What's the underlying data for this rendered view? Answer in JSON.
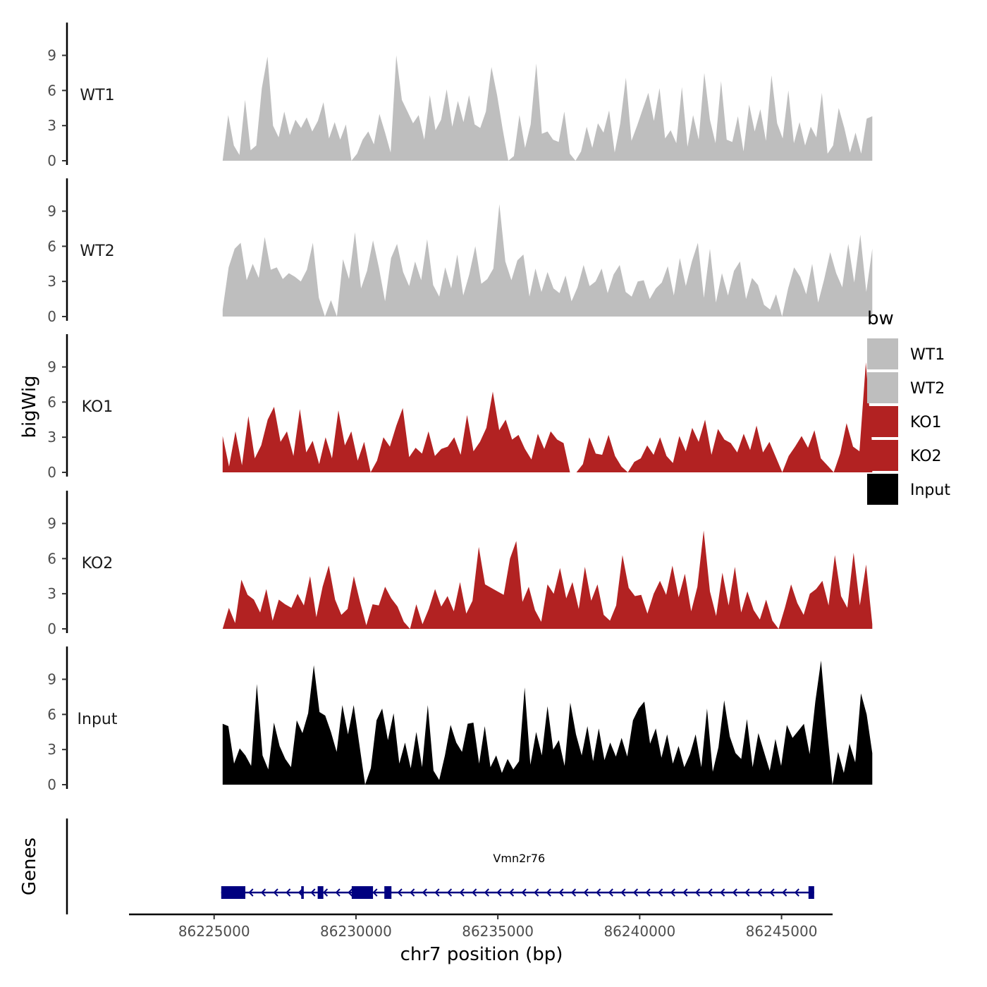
{
  "chart_data": {
    "type": "area",
    "title": "",
    "xlabel": "chr7 position (bp)",
    "ylabel": "bigWig",
    "genes_label": "Genes",
    "xlim": [
      86222000,
      86246800
    ],
    "x_start": 86225300,
    "x_end": 86248200,
    "x_ticks": [
      86225000,
      86230000,
      86235000,
      86240000,
      86245000
    ],
    "x_tick_labels": [
      "86225000",
      "86230000",
      "86235000",
      "86240000",
      "86245000"
    ],
    "ylim": [
      0,
      11.5
    ],
    "y_ticks": [
      0,
      3,
      6,
      9
    ],
    "y_tick_labels": [
      "0",
      "3",
      "6",
      "9"
    ],
    "legend": {
      "title": "bw",
      "entries": [
        {
          "label": "WT1",
          "color": "#bebebe"
        },
        {
          "label": "WT2",
          "color": "#bebebe"
        },
        {
          "label": "KO1",
          "color": "#b22222"
        },
        {
          "label": "KO2",
          "color": "#b22222"
        },
        {
          "label": "Input",
          "color": "#000000"
        }
      ]
    },
    "series": [
      {
        "name": "WT1",
        "label": "WT1",
        "color": "#bebebe",
        "values": [
          0,
          3.9,
          1.3,
          0.5,
          5.2,
          0.9,
          1.3,
          6.2,
          8.9,
          3.0,
          2.0,
          4.2,
          2.2,
          3.5,
          2.8,
          3.7,
          2.5,
          3.4,
          5.0,
          1.9,
          3.3,
          1.8,
          3.1,
          0,
          0.6,
          1.8,
          2.5,
          1.4,
          4.0,
          2.4,
          0.7,
          9.0,
          5.2,
          4.2,
          3.2,
          3.9,
          1.8,
          5.6,
          2.6,
          3.5,
          6.1,
          2.9,
          5.1,
          3.3,
          5.6,
          3.1,
          2.8,
          4.2,
          8.0,
          5.6,
          2.7,
          0,
          0.4,
          3.9,
          1.1,
          3.1,
          8.3,
          2.3,
          2.5,
          1.8,
          1.6,
          4.2,
          0.6,
          0,
          0.8,
          2.9,
          1.1,
          3.2,
          2.4,
          4.3,
          0.7,
          3.2,
          7.1,
          1.7,
          3.0,
          4.4,
          5.8,
          3.4,
          6.2,
          1.9,
          2.6,
          1.5,
          6.3,
          1.2,
          3.9,
          1.8,
          7.5,
          3.5,
          1.5,
          6.8,
          1.8,
          1.6,
          3.8,
          0.8,
          4.8,
          2.5,
          4.4,
          1.7,
          7.3,
          3.2,
          1.9,
          6.0,
          1.5,
          3.3,
          1.3,
          2.9,
          2.0,
          5.8,
          0.6,
          1.3,
          4.5,
          2.8,
          0.7,
          2.4,
          0.6,
          3.6,
          3.8
        ]
      },
      {
        "name": "WT2",
        "label": "WT2",
        "color": "#bebebe",
        "values": [
          0.6,
          4.2,
          5.8,
          6.3,
          3.1,
          4.5,
          3.3,
          6.8,
          4.0,
          4.2,
          3.2,
          3.7,
          3.4,
          3.0,
          4.0,
          6.3,
          1.6,
          0,
          1.4,
          0,
          4.9,
          3.2,
          7.2,
          2.4,
          3.9,
          6.5,
          4.1,
          1.3,
          5.0,
          6.2,
          3.8,
          2.6,
          4.7,
          3.1,
          6.6,
          2.7,
          1.7,
          4.2,
          2.4,
          5.3,
          1.8,
          3.6,
          6.0,
          2.8,
          3.2,
          4.1,
          9.6,
          4.7,
          3.1,
          4.8,
          5.3,
          1.7,
          4.1,
          2.1,
          3.8,
          2.4,
          2.0,
          3.5,
          1.3,
          2.5,
          4.4,
          2.6,
          3.0,
          4.1,
          2.0,
          3.6,
          4.4,
          2.1,
          1.7,
          3.0,
          3.1,
          1.5,
          2.4,
          2.9,
          4.3,
          1.8,
          5.0,
          2.6,
          4.7,
          6.3,
          1.6,
          5.8,
          1.2,
          3.7,
          1.8,
          3.9,
          4.7,
          1.5,
          3.3,
          2.7,
          1.0,
          0.6,
          1.9,
          0,
          2.4,
          4.2,
          3.4,
          1.9,
          4.5,
          1.2,
          3.2,
          5.5,
          3.7,
          2.5,
          6.2,
          2.9,
          7.0,
          2.1,
          5.8
        ]
      },
      {
        "name": "KO1",
        "label": "KO1",
        "color": "#b22222",
        "values": [
          3.1,
          0.5,
          3.5,
          0.6,
          4.8,
          1.2,
          2.3,
          4.5,
          5.6,
          2.6,
          3.5,
          1.4,
          5.4,
          1.7,
          2.7,
          0.7,
          3.0,
          1.2,
          5.3,
          2.3,
          3.5,
          1.0,
          2.6,
          0,
          1.0,
          3.0,
          2.2,
          4.0,
          5.5,
          1.3,
          2.1,
          1.6,
          3.5,
          1.4,
          2.0,
          2.2,
          3.0,
          1.5,
          4.9,
          1.8,
          2.6,
          3.8,
          6.9,
          3.6,
          4.5,
          2.8,
          3.2,
          2.0,
          1.1,
          3.3,
          2.0,
          3.5,
          2.8,
          2.5,
          0,
          0,
          0.7,
          3.0,
          1.6,
          1.5,
          3.2,
          1.4,
          0.5,
          0,
          0.9,
          1.2,
          2.3,
          1.5,
          3.0,
          1.4,
          0.8,
          3.1,
          1.8,
          3.8,
          2.6,
          4.5,
          1.5,
          3.7,
          2.8,
          2.5,
          1.7,
          3.3,
          1.9,
          4.0,
          1.7,
          2.6,
          1.3,
          0,
          1.4,
          2.2,
          3.1,
          2.1,
          3.6,
          1.2,
          0.6,
          0,
          1.6,
          4.2,
          2.2,
          1.8,
          9.4,
          2.2
        ]
      },
      {
        "name": "KO2",
        "label": "KO2",
        "color": "#b22222",
        "values": [
          0,
          1.8,
          0.5,
          4.2,
          2.9,
          2.5,
          1.4,
          3.4,
          0.7,
          2.5,
          2.1,
          1.8,
          3.0,
          2.0,
          4.5,
          1.0,
          3.6,
          5.4,
          2.5,
          1.2,
          1.7,
          4.5,
          2.3,
          0.3,
          2.1,
          2.0,
          3.6,
          2.6,
          1.9,
          0.6,
          0,
          2.1,
          0.4,
          1.7,
          3.4,
          1.9,
          2.8,
          1.5,
          4.0,
          1.3,
          2.4,
          7.0,
          3.8,
          3.5,
          3.2,
          2.9,
          6.0,
          7.5,
          2.3,
          3.6,
          1.6,
          0.6,
          3.8,
          3.0,
          5.2,
          2.6,
          4.0,
          1.7,
          5.3,
          2.4,
          3.8,
          1.2,
          0.7,
          2.0,
          6.3,
          3.5,
          2.8,
          2.9,
          1.3,
          3.0,
          4.1,
          2.9,
          5.4,
          2.7,
          4.7,
          1.5,
          3.6,
          8.4,
          3.2,
          1.1,
          4.8,
          2.0,
          5.3,
          1.4,
          3.2,
          1.6,
          0.8,
          2.5,
          0.7,
          0,
          1.8,
          3.8,
          2.2,
          1.2,
          3.0,
          3.4,
          4.1,
          2.0,
          6.3,
          2.8,
          1.8,
          6.5,
          2.0,
          5.5,
          0.4
        ]
      },
      {
        "name": "Input",
        "label": "Input",
        "color": "#000000",
        "values": [
          5.2,
          5.0,
          1.8,
          3.1,
          2.5,
          1.6,
          8.6,
          2.5,
          1.3,
          5.3,
          3.3,
          2.2,
          1.5,
          5.5,
          4.4,
          6.1,
          10.2,
          6.2,
          5.9,
          4.5,
          2.8,
          6.8,
          4.3,
          6.8,
          3.4,
          0,
          1.4,
          5.5,
          6.5,
          3.8,
          6.1,
          1.8,
          3.6,
          1.4,
          4.5,
          1.5,
          6.8,
          1.2,
          0.4,
          2.5,
          5.1,
          3.6,
          2.8,
          5.2,
          5.3,
          1.8,
          5.0,
          1.5,
          2.5,
          1.0,
          2.2,
          1.3,
          2.0,
          8.3,
          1.7,
          4.5,
          2.5,
          6.7,
          3.0,
          3.8,
          1.6,
          7.0,
          4.3,
          2.5,
          5.0,
          2.0,
          4.8,
          2.1,
          3.6,
          2.4,
          4.0,
          2.4,
          5.5,
          6.5,
          7.1,
          3.5,
          4.8,
          2.3,
          4.3,
          1.8,
          3.3,
          1.5,
          2.6,
          4.3,
          1.5,
          6.5,
          1.1,
          3.2,
          7.2,
          4.1,
          2.7,
          2.2,
          5.6,
          1.5,
          4.4,
          2.8,
          1.2,
          3.9,
          1.6,
          5.1,
          4.0,
          4.6,
          5.2,
          2.6,
          7.1,
          10.6,
          5.0,
          0,
          2.8,
          1.0,
          3.5,
          1.9,
          7.8,
          6.0,
          2.7
        ]
      }
    ],
    "gene": {
      "name": "Vmn2r76",
      "strand": "-",
      "start": 86225250,
      "end": 86246150,
      "exons": [
        {
          "start": 86225250,
          "end": 86226100
        },
        {
          "start": 86228070,
          "end": 86228160
        },
        {
          "start": 86228650,
          "end": 86228850
        },
        {
          "start": 86229850,
          "end": 86230600
        },
        {
          "start": 86231000,
          "end": 86231250
        },
        {
          "start": 86245950,
          "end": 86246150
        }
      ]
    }
  }
}
